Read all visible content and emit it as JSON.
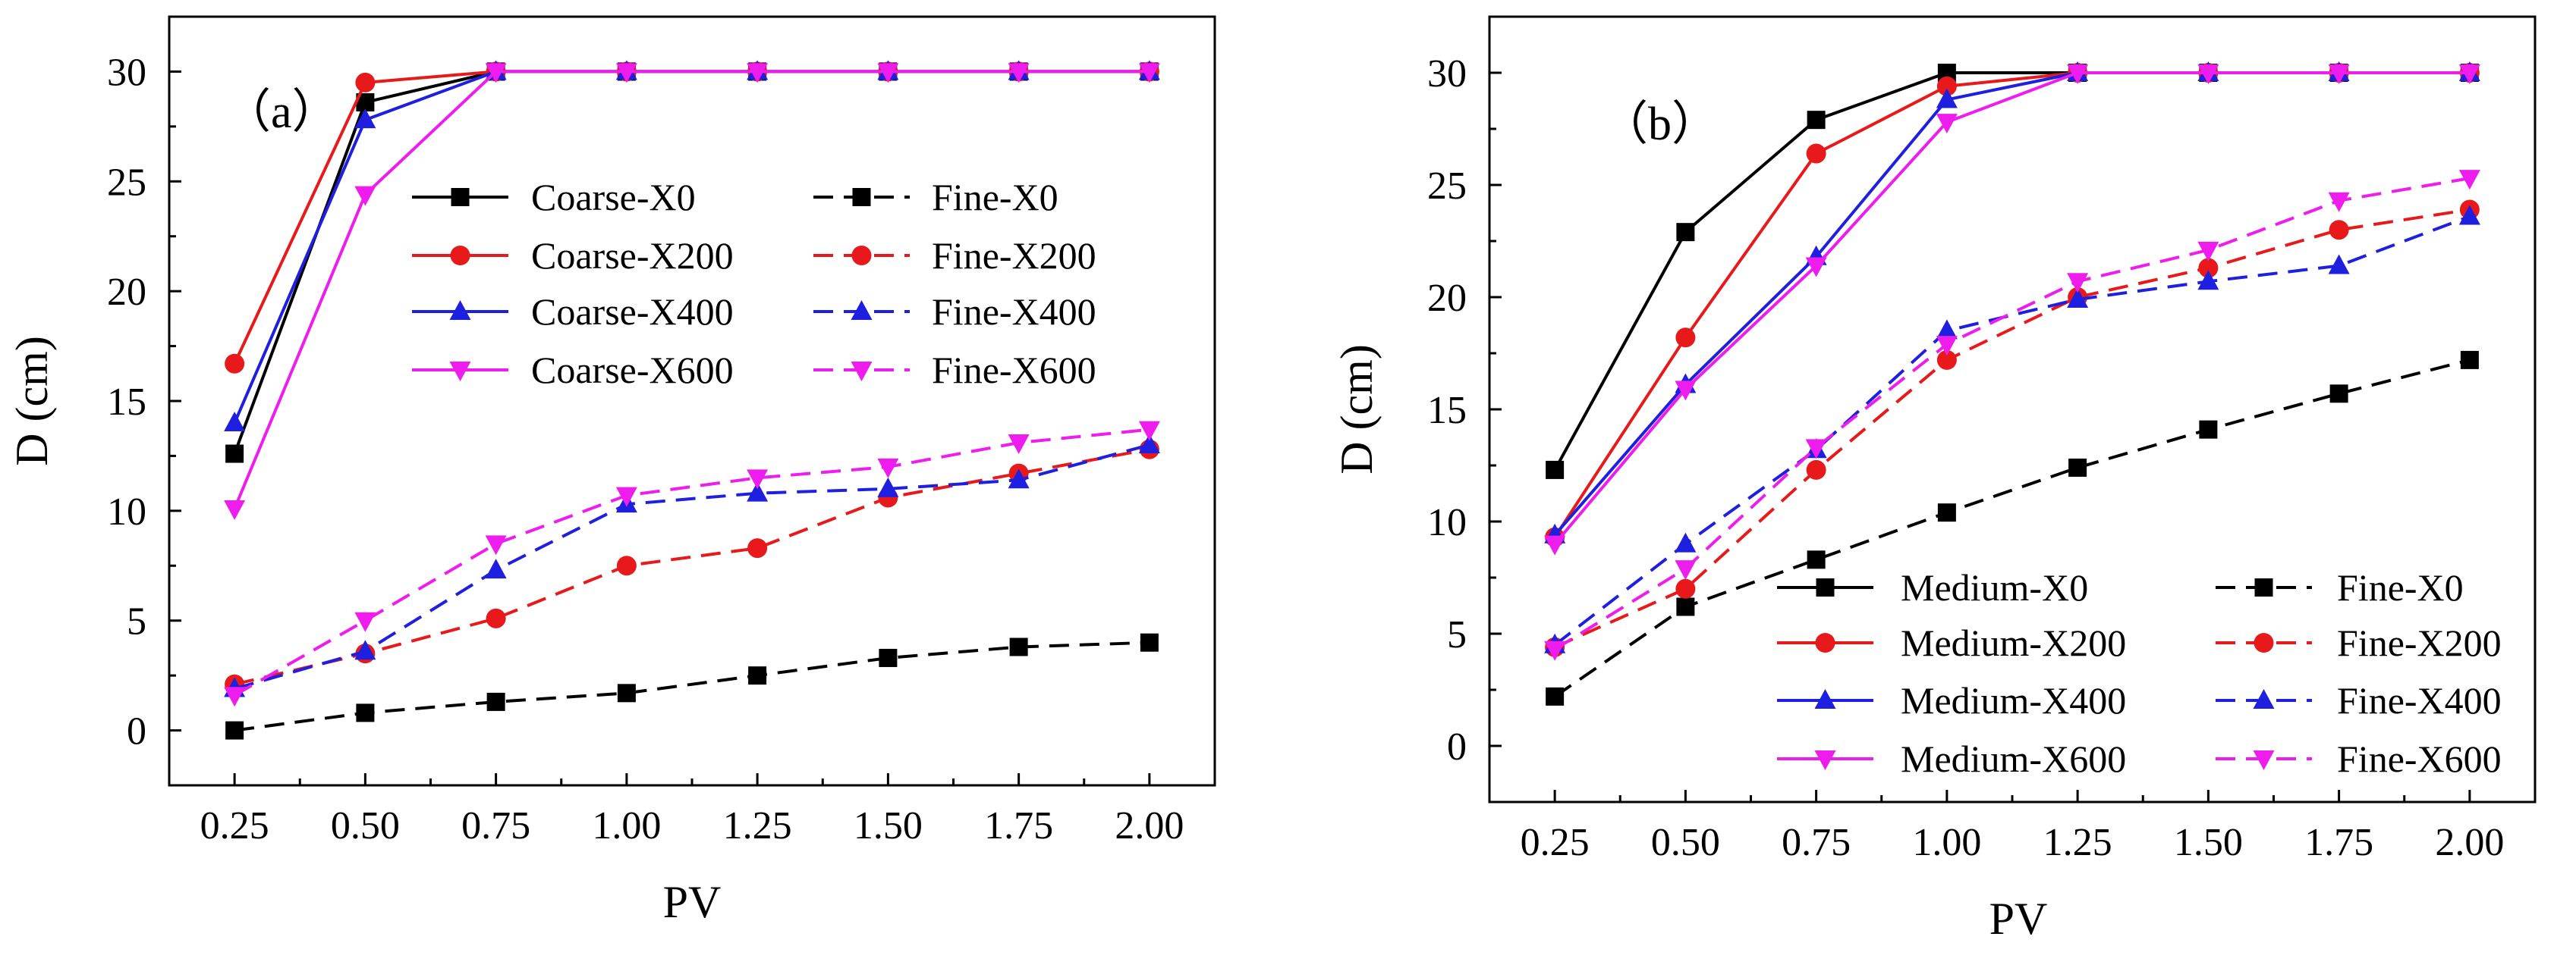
{
  "chart_data": [
    {
      "type": "line",
      "panel_label": "（a）",
      "xlabel": "PV",
      "ylabel": "D (cm)",
      "xlim": [
        0.125,
        2.125
      ],
      "ylim": [
        -2.5,
        32.5
      ],
      "x": [
        0.25,
        0.5,
        0.75,
        1.0,
        1.25,
        1.5,
        1.75,
        2.0
      ],
      "x_tick_labels": [
        "0.25",
        "0.50",
        "0.75",
        "1.00",
        "1.25",
        "1.50",
        "1.75",
        "2.00"
      ],
      "y_ticks": [
        0,
        5,
        10,
        15,
        20,
        25,
        30
      ],
      "y_tick_labels": [
        "0",
        "5",
        "10",
        "15",
        "20",
        "25",
        "30"
      ],
      "legend_location": "upper-middle",
      "series": [
        {
          "name": "Coarse-X0",
          "color": "#000000",
          "marker": "square",
          "dash": "solid",
          "values": [
            12.6,
            28.6,
            30,
            30,
            30,
            30,
            30,
            30
          ]
        },
        {
          "name": "Coarse-X200",
          "color": "#e8191b",
          "marker": "circle",
          "dash": "solid",
          "values": [
            16.7,
            29.5,
            30,
            30,
            30,
            30,
            30,
            30
          ]
        },
        {
          "name": "Coarse-X400",
          "color": "#1f1fe0",
          "marker": "triangle-up",
          "dash": "solid",
          "values": [
            14.0,
            27.8,
            30,
            30,
            30,
            30,
            30,
            30
          ]
        },
        {
          "name": "Coarse-X600",
          "color": "#ee1ced",
          "marker": "triangle-down",
          "dash": "solid",
          "values": [
            10.1,
            24.4,
            30,
            30,
            30,
            30,
            30,
            30
          ]
        },
        {
          "name": "Fine-X0",
          "color": "#000000",
          "marker": "square",
          "dash": "dashed",
          "values": [
            0.0,
            0.8,
            1.3,
            1.7,
            2.5,
            3.3,
            3.8,
            4.0
          ]
        },
        {
          "name": "Fine-X200",
          "color": "#e8191b",
          "marker": "circle",
          "dash": "dashed",
          "values": [
            2.1,
            3.5,
            5.1,
            7.5,
            8.3,
            10.6,
            11.7,
            12.8
          ]
        },
        {
          "name": "Fine-X400",
          "color": "#1f1fe0",
          "marker": "triangle-up",
          "dash": "dashed",
          "values": [
            1.9,
            3.6,
            7.3,
            10.3,
            10.8,
            11.0,
            11.4,
            13.0
          ]
        },
        {
          "name": "Fine-X600",
          "color": "#ee1ced",
          "marker": "triangle-down",
          "dash": "dashed",
          "values": [
            1.6,
            5.0,
            8.5,
            10.7,
            11.5,
            12.0,
            13.1,
            13.7
          ]
        }
      ]
    },
    {
      "type": "line",
      "panel_label": "（b）",
      "xlabel": "PV",
      "ylabel": "D (cm)",
      "xlim": [
        0.125,
        2.125
      ],
      "ylim": [
        -2.5,
        32.5
      ],
      "x": [
        0.25,
        0.5,
        0.75,
        1.0,
        1.25,
        1.5,
        1.75,
        2.0
      ],
      "x_tick_labels": [
        "0.25",
        "0.50",
        "0.75",
        "1.00",
        "1.25",
        "1.50",
        "1.75",
        "2.00"
      ],
      "y_ticks": [
        0,
        5,
        10,
        15,
        20,
        25,
        30
      ],
      "y_tick_labels": [
        "0",
        "5",
        "10",
        "15",
        "20",
        "25",
        "30"
      ],
      "legend_location": "lower-right",
      "series": [
        {
          "name": "Medium-X0",
          "color": "#000000",
          "marker": "square",
          "dash": "solid",
          "values": [
            12.3,
            22.9,
            27.9,
            30,
            30,
            30,
            30,
            30
          ]
        },
        {
          "name": "Medium-X200",
          "color": "#e8191b",
          "marker": "circle",
          "dash": "solid",
          "values": [
            9.3,
            18.2,
            26.4,
            29.4,
            30,
            30,
            30,
            30
          ]
        },
        {
          "name": "Medium-X400",
          "color": "#1f1fe0",
          "marker": "triangle-up",
          "dash": "solid",
          "values": [
            9.4,
            16.1,
            21.8,
            28.8,
            30,
            30,
            30,
            30
          ]
        },
        {
          "name": "Medium-X600",
          "color": "#ee1ced",
          "marker": "triangle-down",
          "dash": "solid",
          "values": [
            9.0,
            15.9,
            21.4,
            27.8,
            30,
            30,
            30,
            30
          ]
        },
        {
          "name": "Fine-X0",
          "color": "#000000",
          "marker": "square",
          "dash": "dashed",
          "values": [
            2.2,
            6.2,
            8.3,
            10.4,
            12.4,
            14.1,
            15.7,
            17.2
          ]
        },
        {
          "name": "Fine-X200",
          "color": "#e8191b",
          "marker": "circle",
          "dash": "dashed",
          "values": [
            4.4,
            7.0,
            12.3,
            17.2,
            20.0,
            21.3,
            23.0,
            23.9
          ]
        },
        {
          "name": "Fine-X400",
          "color": "#1f1fe0",
          "marker": "triangle-up",
          "dash": "dashed",
          "values": [
            4.5,
            9.0,
            13.2,
            18.5,
            19.9,
            20.7,
            21.4,
            23.6
          ]
        },
        {
          "name": "Fine-X600",
          "color": "#ee1ced",
          "marker": "triangle-down",
          "dash": "dashed",
          "values": [
            4.3,
            7.9,
            13.3,
            17.9,
            20.7,
            22.1,
            24.3,
            25.3
          ]
        }
      ]
    }
  ]
}
